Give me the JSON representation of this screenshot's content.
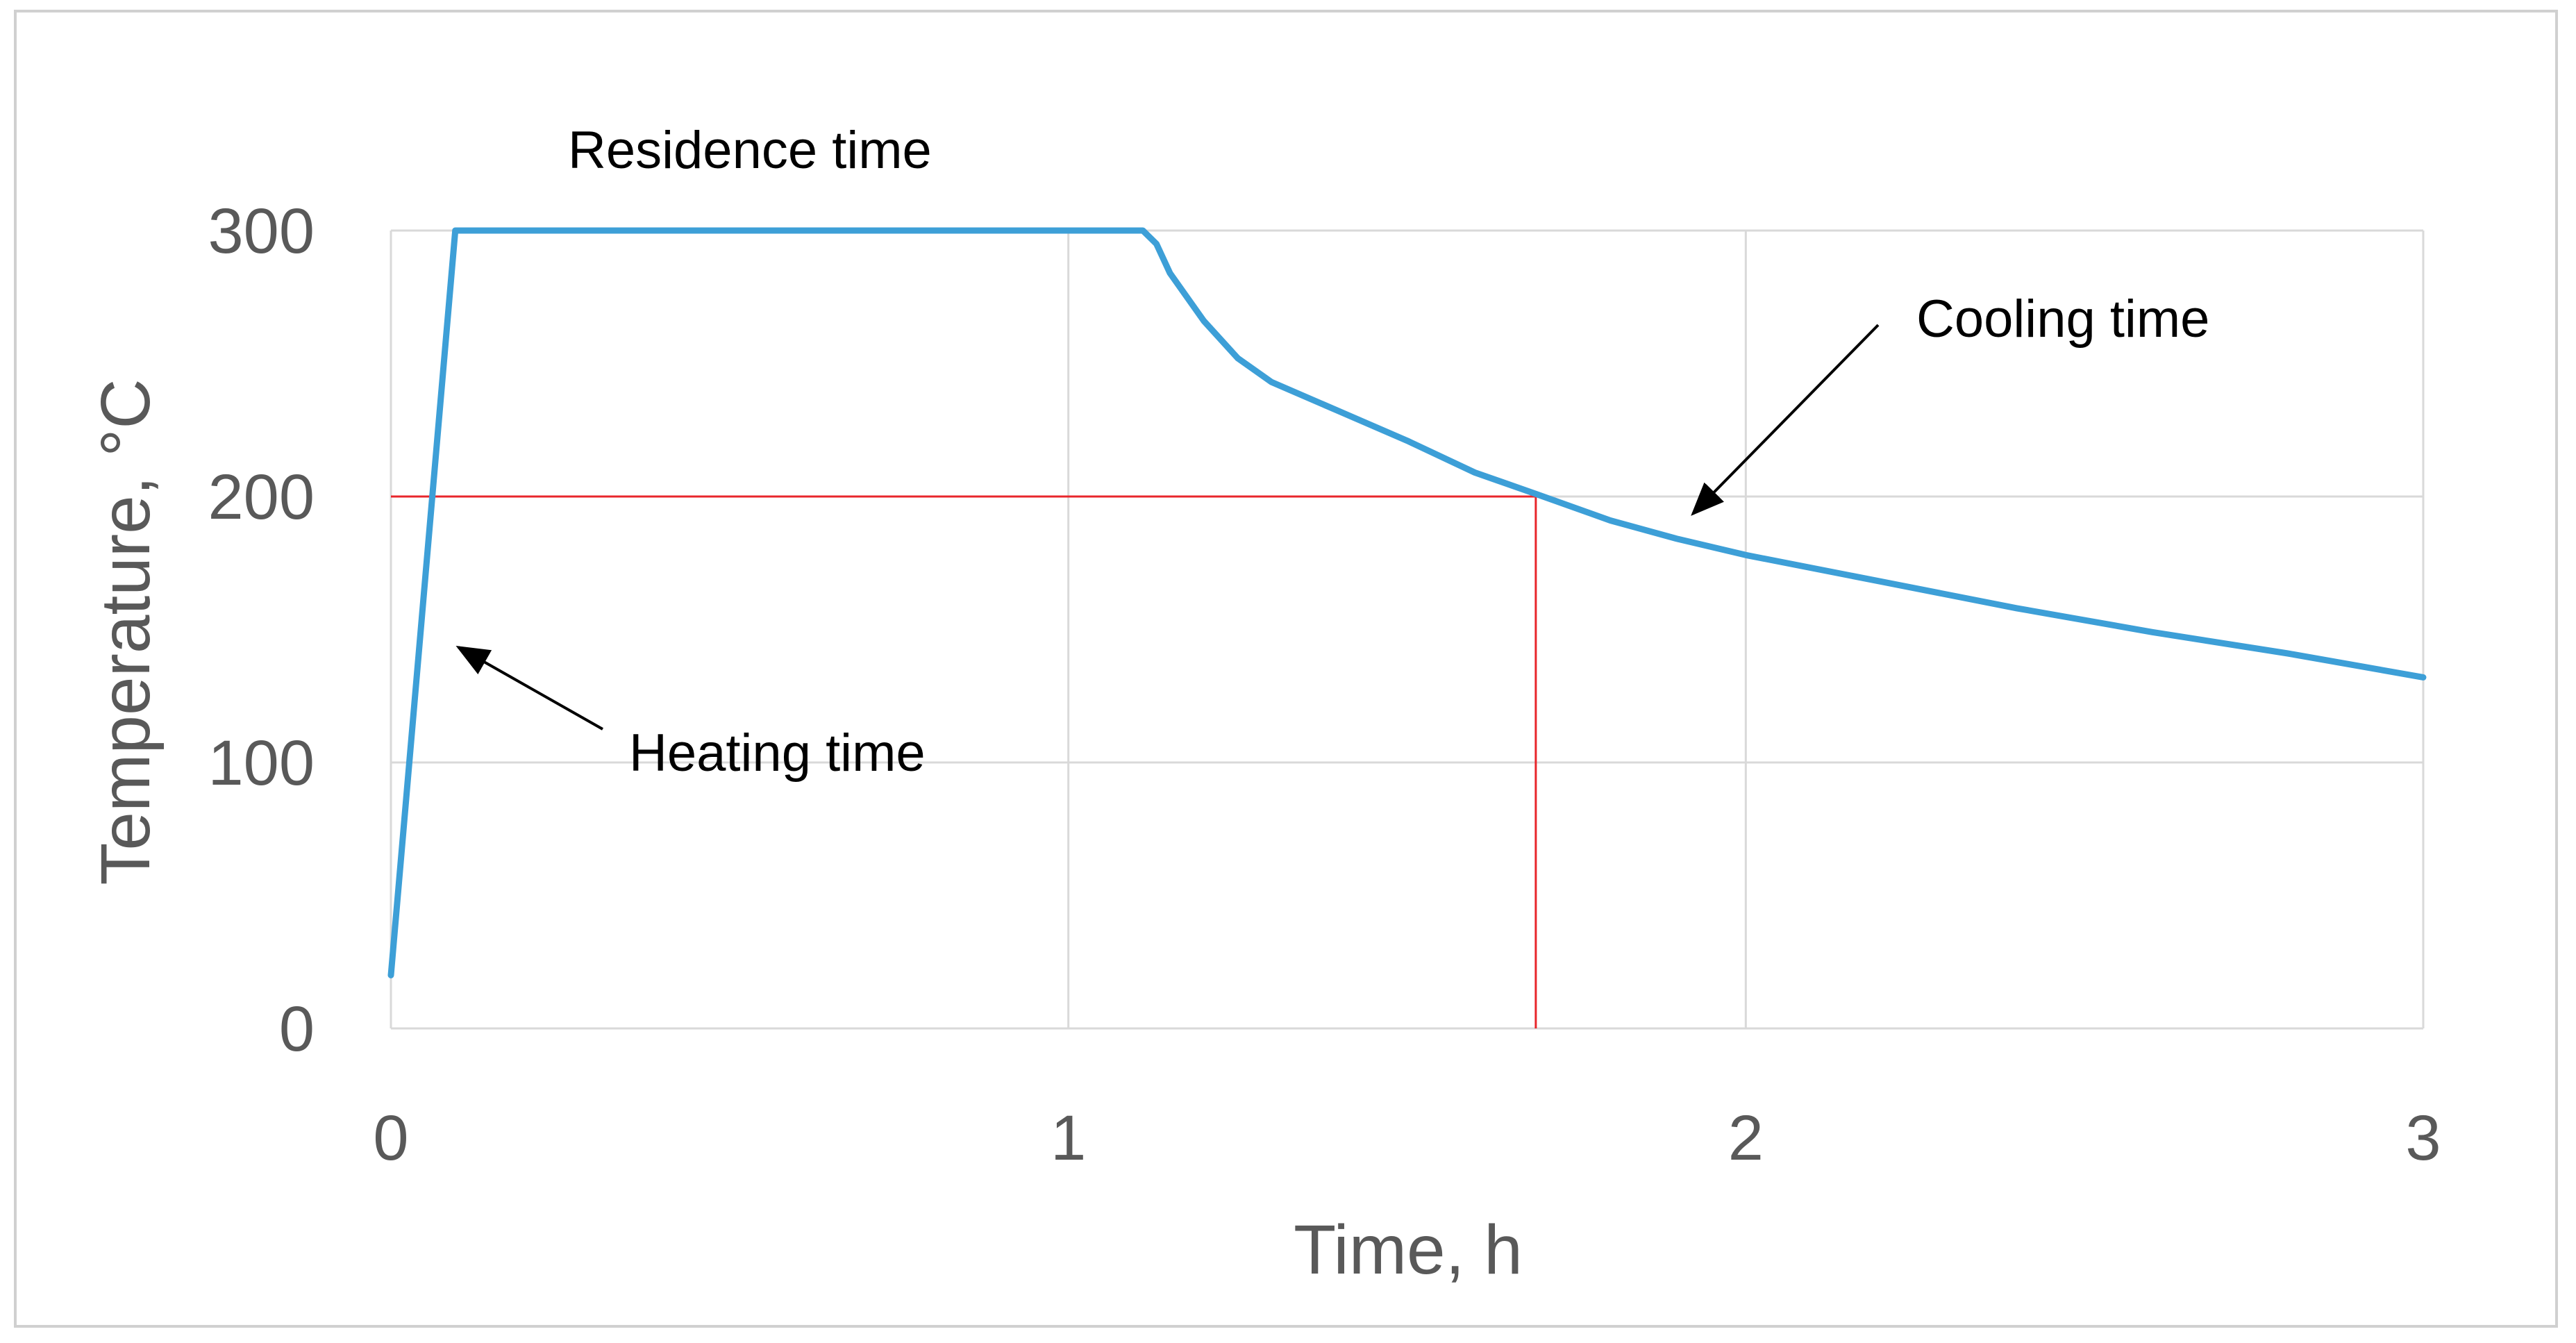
{
  "chart_data": {
    "type": "line",
    "title": "",
    "xlabel": "Time, h",
    "ylabel": "Temperature, °C",
    "xlim": [
      0,
      3
    ],
    "ylim": [
      0,
      300
    ],
    "x_ticks": [
      0,
      1,
      2,
      3
    ],
    "y_ticks": [
      0,
      100,
      200,
      300
    ],
    "x_tick_labels": [
      "0",
      "1",
      "2",
      "3"
    ],
    "y_tick_labels": [
      "0",
      "100",
      "200",
      "300"
    ],
    "grid": true,
    "legend": "none",
    "series": [
      {
        "name": "Temperature",
        "color": "#3d9fd7",
        "x": [
          0,
          0.095,
          0.5,
          1.0,
          1.11,
          1.13,
          1.15,
          1.2,
          1.25,
          1.3,
          1.4,
          1.5,
          1.6,
          1.69,
          1.8,
          1.9,
          2.0,
          2.2,
          2.4,
          2.6,
          2.8,
          3.0
        ],
        "y": [
          20,
          300,
          300,
          300,
          300,
          295,
          284,
          266,
          252,
          243,
          232,
          221,
          209,
          201,
          191,
          184,
          178,
          168,
          158,
          149,
          141,
          132
        ]
      }
    ],
    "reference_lines": [
      {
        "name": "200 °C threshold",
        "color": "#e8262b",
        "axis": "y",
        "value": 200,
        "from_x": 0,
        "to_x": 1.69
      },
      {
        "name": "time at 200 °C",
        "color": "#e8262b",
        "axis": "x",
        "value": 1.69,
        "from_y": 0,
        "to_y": 200
      }
    ],
    "annotations": [
      {
        "key": "residence",
        "text": "Residence time",
        "target": null
      },
      {
        "key": "cooling",
        "text": "Cooling time",
        "target": {
          "x": 1.92,
          "y": 192
        }
      },
      {
        "key": "heating",
        "text": "Heating time",
        "target": {
          "x": 0.095,
          "y": 145
        }
      }
    ]
  }
}
